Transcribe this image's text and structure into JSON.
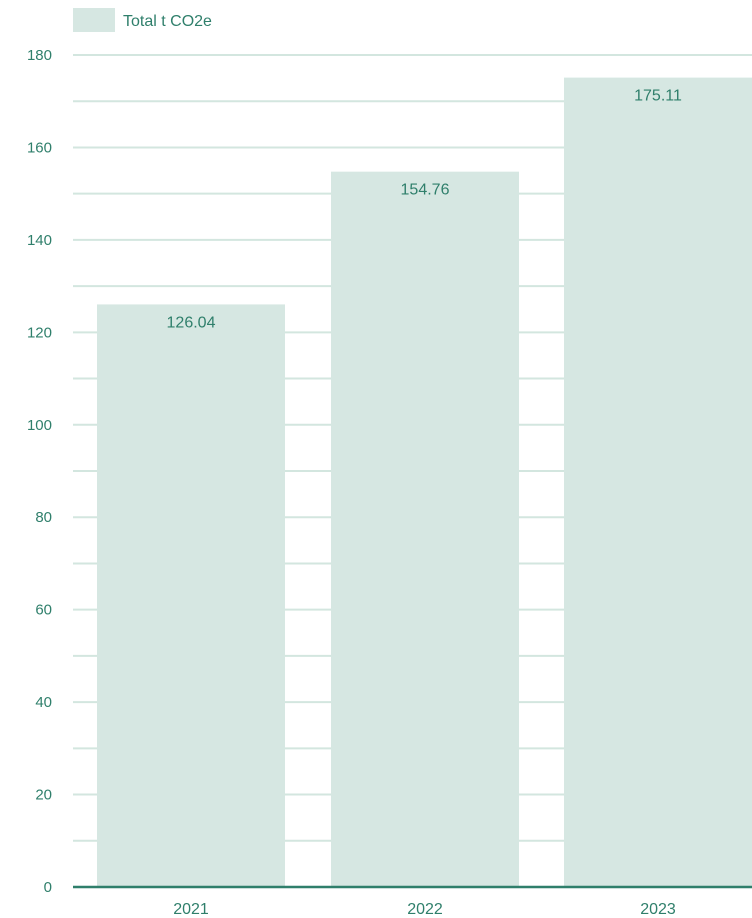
{
  "chart_data": {
    "type": "bar",
    "categories": [
      "2021",
      "2022",
      "2023"
    ],
    "series": [
      {
        "name": "Total t CO2e",
        "values": [
          126.04,
          154.76,
          175.11
        ]
      }
    ],
    "data_labels": [
      "126.04",
      "154.76",
      "175.11"
    ],
    "ylim": [
      0,
      180
    ],
    "y_ticks": [
      "0",
      "20",
      "40",
      "60",
      "80",
      "100",
      "120",
      "140",
      "160",
      "180"
    ],
    "grid": true,
    "legend": "top-left",
    "colors": {
      "bar": "#d6e7e2",
      "grid": "#d3e6df",
      "axis": "#2f7f6b",
      "text": "#2f7f6b"
    }
  }
}
